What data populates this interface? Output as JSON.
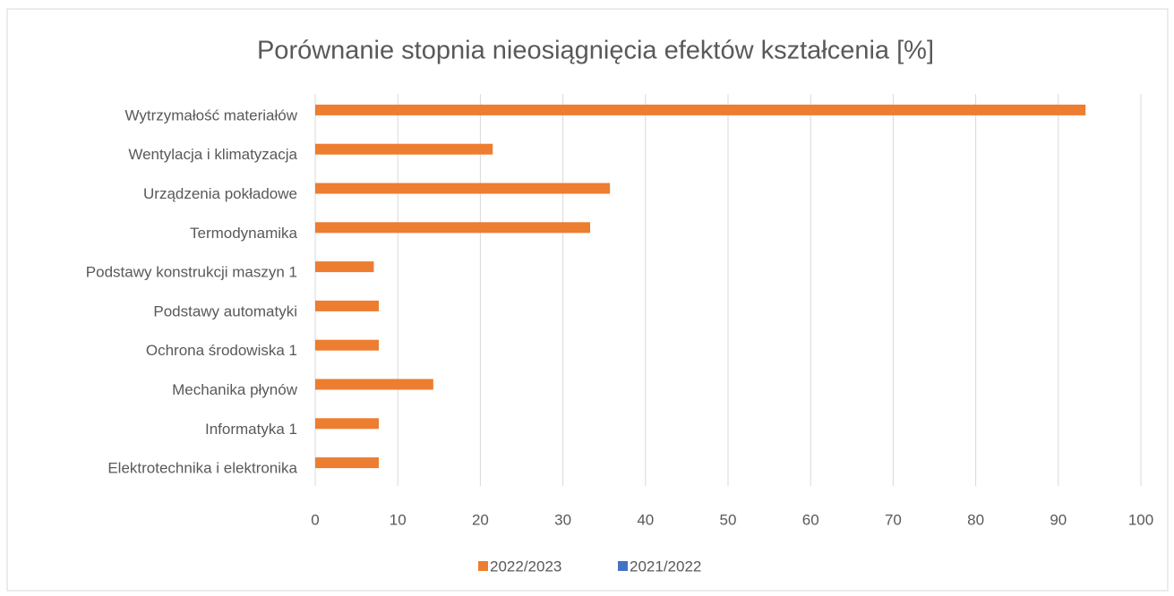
{
  "chart_data": {
    "type": "hbar",
    "title": "Porównanie stopnia nieosiągnięcia efektów kształcenia [%]",
    "categories": [
      "Wytrzymałość materiałów",
      "Wentylacja i klimatyzacja",
      "Urządzenia pokładowe",
      "Termodynamika",
      "Podstawy konstrukcji maszyn 1",
      "Podstawy automatyki",
      "Ochrona środowiska 1",
      "Mechanika płynów",
      "Informatyka 1",
      "Elektrotechnika i elektronika"
    ],
    "series": [
      {
        "name": "2022/2023",
        "color": "#ed7d31",
        "values": [
          93.3,
          21.5,
          35.7,
          33.3,
          7.1,
          7.7,
          7.7,
          14.3,
          7.7,
          7.7
        ]
      },
      {
        "name": "2021/2022",
        "color": "#4472c4",
        "values": [
          null,
          null,
          null,
          null,
          null,
          null,
          null,
          null,
          null,
          null
        ]
      }
    ],
    "xlim": [
      0,
      100
    ],
    "xticks": [
      0,
      10,
      20,
      30,
      40,
      50,
      60,
      70,
      80,
      90,
      100
    ],
    "grid": true
  }
}
